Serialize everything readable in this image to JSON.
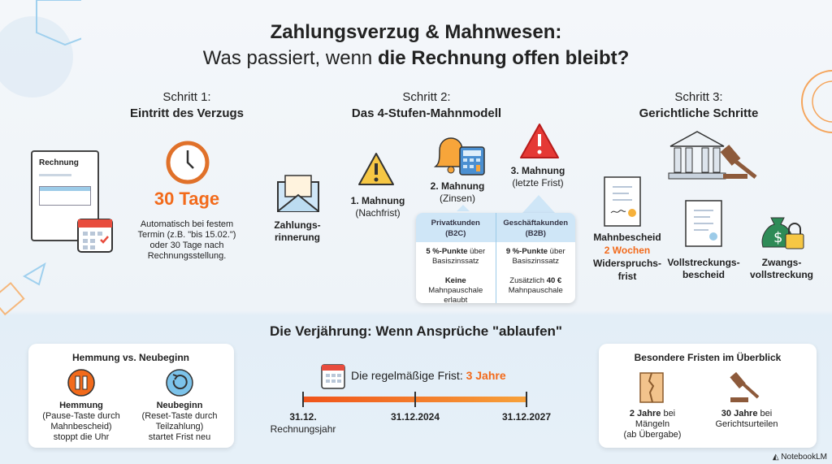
{
  "title": {
    "line1": "Zahlungsverzug & Mahnwesen:",
    "line2_prefix": "Was passiert, wenn ",
    "line2_bold": "die Rechnung offen bleibt?"
  },
  "step1": {
    "label": "Schritt 1:",
    "title": "Eintritt des Verzugs",
    "doc_label": "Rechnung",
    "days": "30 Tage",
    "desc": [
      "Automatisch bei festem",
      "Termin (z.B. \"bis 15.02.\")",
      "oder 30 Tage nach",
      "Rechnungsstellung."
    ]
  },
  "step2": {
    "label": "Schritt 2:",
    "title": "Das 4-Stufen-Mahnmodell",
    "reminder": [
      "Zahlungs-",
      "rinnerung"
    ],
    "m1": {
      "title": "1. Mahnung",
      "sub": "(Nachfrist)"
    },
    "m2": {
      "title": "2. Mahnung",
      "sub": "(Zinsen)"
    },
    "m3": {
      "title": "3. Mahnung",
      "sub": "(letzte Frist)"
    },
    "table": {
      "cols": [
        {
          "head": "Privatkunden",
          "code": "(B2C)",
          "rate_bold": "5 %-Punkte",
          "rate_rest": " über",
          "rate_line2": "Basiszinssatz",
          "fee_bold": "Keine",
          "fee_rest": "Mahnpauschale erlaubt"
        },
        {
          "head": "Geschäftakunden",
          "code": "(B2B)",
          "rate_bold": "9 %-Punkte",
          "rate_rest": " über",
          "rate_line2": "Basiszinssatz",
          "fee_pre": "Zusätzlich ",
          "fee_bold": "40 €",
          "fee_rest": "Mahnpauschale"
        }
      ]
    }
  },
  "step3": {
    "label": "Schritt 3:",
    "title": "Gerichtliche Schritte",
    "mahnbescheid": "Mahnbescheid",
    "weeks": "2 Wochen",
    "widerspruch": [
      "Widerspruchs-",
      "frist"
    ],
    "vollstreckungsbescheid": [
      "Vollstreckungs-",
      "bescheid"
    ],
    "zwangsvollstreckung": [
      "Zwangs-",
      "vollstreckung"
    ]
  },
  "verjaehrung": {
    "title": "Die Verjährung: Wenn Ansprüche \"ablaufen\"",
    "left": {
      "title": "Hemmung vs. Neubeginn",
      "hemmung": {
        "title": "Hemmung",
        "desc": [
          "(Pause-Taste durch",
          "Mahnbescheid)",
          "stoppt die Uhr"
        ]
      },
      "neubeginn": {
        "title": "Neubeginn",
        "desc": [
          "(Reset-Taste durch",
          "Teilzahlung)",
          "startet Frist neu"
        ]
      }
    },
    "timeline": {
      "text": "Die regelmäßige Frist: ",
      "value": "3 Jahre",
      "points": [
        {
          "date": "31.12.",
          "sub": "Rechnungsjahr"
        },
        {
          "date": "31.12.2024"
        },
        {
          "date": "31.12.2027"
        }
      ]
    },
    "right": {
      "title": "Besondere Fristen im Überblick",
      "a": {
        "bold": "2 Jahre",
        "rest": " bei",
        "l2": "Mängeln",
        "l3": "(ab Übergabe)"
      },
      "b": {
        "bold": "30 Jahre",
        "rest": " bei",
        "l2": "Gerichtsurteilen"
      }
    }
  },
  "brand": "NotebookLM",
  "colors": {
    "accent": "#f26a1b",
    "blue": "#cfe6f7"
  }
}
